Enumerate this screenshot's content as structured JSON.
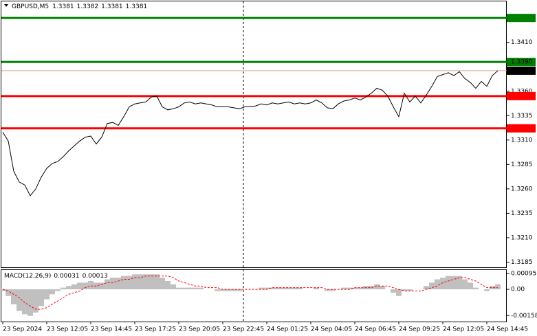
{
  "chart_data": [
    {
      "type": "line",
      "symbol": "GBPUSD,M5",
      "ohlc": [
        1.3381,
        1.3382,
        1.3381,
        1.3381
      ],
      "categories": [
        "23 Sep 2024",
        null,
        null,
        null,
        null,
        null,
        null,
        null,
        "23 Sep 12:05",
        null,
        null,
        null,
        null,
        null,
        null,
        null,
        "23 Sep 14:45",
        null,
        null,
        null,
        null,
        null,
        null,
        null,
        "23 Sep 17:25",
        null,
        null,
        null,
        null,
        null,
        null,
        null,
        "23 Sep 20:05",
        null,
        null,
        null,
        null,
        null,
        null,
        null,
        "23 Sep 22:45",
        null,
        null,
        null,
        null,
        null,
        null,
        null,
        "24 Sep 01:25",
        null,
        null,
        null,
        null,
        null,
        null,
        null,
        "24 Sep 04:05",
        null,
        null,
        null,
        null,
        null,
        null,
        null,
        "24 Sep 06:45",
        null,
        null,
        null,
        null,
        null,
        null,
        null,
        "24 Sep 09:25",
        null,
        null,
        null,
        null,
        null,
        null,
        null,
        "24 Sep 12:05",
        null,
        null,
        null,
        null,
        null,
        null,
        null,
        "24 Sep 14:45",
        null,
        null
      ],
      "values": [
        1.3318,
        1.3309,
        1.3278,
        1.3267,
        1.3264,
        1.3253,
        1.326,
        1.3272,
        1.3281,
        1.3286,
        1.3288,
        1.3293,
        1.3299,
        1.3304,
        1.3309,
        1.3313,
        1.3314,
        1.3306,
        1.3313,
        1.3327,
        1.3328,
        1.3325,
        1.3334,
        1.3344,
        1.3347,
        1.3348,
        1.3349,
        1.3354,
        1.3355,
        1.3344,
        1.3341,
        1.3342,
        1.3344,
        1.3348,
        1.3349,
        1.3347,
        1.3348,
        1.3347,
        1.3346,
        1.3344,
        1.3344,
        1.3344,
        1.3343,
        1.3342,
        1.3344,
        1.3344,
        1.3345,
        1.3347,
        1.3346,
        1.3348,
        1.3347,
        1.3348,
        1.3349,
        1.3347,
        1.3348,
        1.3347,
        1.3348,
        1.3351,
        1.3348,
        1.3343,
        1.3342,
        1.3347,
        1.335,
        1.3351,
        1.3353,
        1.3351,
        1.3354,
        1.3358,
        1.3363,
        1.3361,
        1.3355,
        1.3344,
        1.3334,
        1.3358,
        1.3349,
        1.3355,
        1.3348,
        1.3356,
        1.3365,
        1.3375,
        1.3377,
        1.3379,
        1.3376,
        1.338,
        1.3373,
        1.3369,
        1.3363,
        1.337,
        1.3365,
        1.3376,
        1.3381
      ],
      "color": "#000000",
      "ylim": [
        1.3179,
        1.3452
      ],
      "yticks": [
        {
          "value": 1.341,
          "label": "1.3410"
        },
        {
          "value": 1.336,
          "label": "1.3360"
        },
        1.3335,
        {
          "value": 1.331,
          "label": "1.3310"
        },
        1.3285,
        {
          "value": 1.326,
          "label": "1.3260"
        },
        1.3235,
        {
          "value": 1.321,
          "label": "1.3210"
        },
        1.3185
      ],
      "levels": [
        {
          "value": 1.3435,
          "color": "#008000"
        },
        {
          "value": 1.339,
          "label": "1.3390",
          "color": "#008000"
        },
        {
          "value": 1.3355,
          "color": "#ff0000"
        },
        {
          "value": 1.3322,
          "color": "#ff0000"
        }
      ],
      "last": 1.3381
    },
    {
      "type": "bar",
      "name": "MACD(12,26,9)",
      "main": 0.00031,
      "signal_value": 0.00013,
      "values": [
        -0.0001,
        -0.0004,
        -0.0009,
        -0.0013,
        -0.0015,
        -0.0016,
        -0.0014,
        -0.001,
        -0.0006,
        -0.0003,
        -0.0001,
        0.0001,
        0.0002,
        0.0003,
        0.0004,
        0.0004,
        0.0005,
        0.0004,
        0.0004,
        0.0006,
        0.0007,
        0.0007,
        0.0008,
        0.0008,
        0.0009,
        0.0009,
        0.0009,
        0.0009,
        0.0009,
        0.0007,
        0.0005,
        0.0003,
        0.0001,
        0.0001,
        0.0001,
        0.0001,
        0.0001,
        0,
        0,
        -0.0001,
        -0.0001,
        -0.0001,
        -0.0001,
        -0.0001,
        0,
        0,
        0,
        0.0001,
        0.0001,
        0.0001,
        0.0001,
        0.0001,
        0.0001,
        0.0001,
        0.0001,
        0,
        0,
        0.0001,
        0,
        -0.0001,
        -0.0001,
        0,
        0.0001,
        0.0001,
        0.0001,
        0.0001,
        0.0002,
        0.0002,
        0.0003,
        0.0002,
        0,
        -0.0002,
        -0.0004,
        -0.0001,
        -0.0001,
        0,
        0,
        0.0002,
        0.0004,
        0.0006,
        0.0007,
        0.0008,
        0.0008,
        0.0008,
        0.0006,
        0.0004,
        0.0001,
        0,
        -0.0001,
        0.0002,
        0.0003
      ],
      "signal": [
        0,
        -0.0001,
        -0.0003,
        -0.0005,
        -0.0008,
        -0.001,
        -0.0012,
        -0.0012,
        -0.0011,
        -0.0009,
        -0.0007,
        -0.0005,
        -0.0003,
        -0.0002,
        -0.0001,
        0.0001,
        0.0002,
        0.0002,
        0.0003,
        0.0004,
        0.0004,
        0.0005,
        0.0006,
        0.0006,
        0.0007,
        0.0007,
        0.0008,
        0.0008,
        0.0008,
        0.0008,
        0.0008,
        0.0007,
        0.0005,
        0.0004,
        0.0003,
        0.0002,
        0.0002,
        0.0001,
        0.0001,
        0.0001,
        0,
        0,
        0,
        0,
        0,
        0,
        0,
        0,
        0,
        0.0001,
        0.0001,
        0.0001,
        0.0001,
        0.0001,
        0.0001,
        0.0001,
        0.0001,
        0.0001,
        0.0001,
        0,
        0,
        0,
        0,
        0,
        0.0001,
        0.0001,
        0.0001,
        0.0001,
        0.0002,
        0.0002,
        0.0002,
        0.0001,
        0,
        -0.0001,
        -0.0001,
        -0.0001,
        -0.0001,
        0,
        0.0001,
        0.0002,
        0.0004,
        0.0005,
        0.0006,
        0.0007,
        0.0007,
        0.0006,
        0.0005,
        0.0003,
        0.0001,
        0.0001,
        0.0001
      ],
      "color": "#c0c0c0",
      "signal_color": "#ff0000",
      "ylim": [
        -0.00194,
        0.00116
      ],
      "yticks": [
        0.00095,
        {
          "value": 0,
          "label": "0.00"
        },
        -0.00158
      ]
    }
  ]
}
